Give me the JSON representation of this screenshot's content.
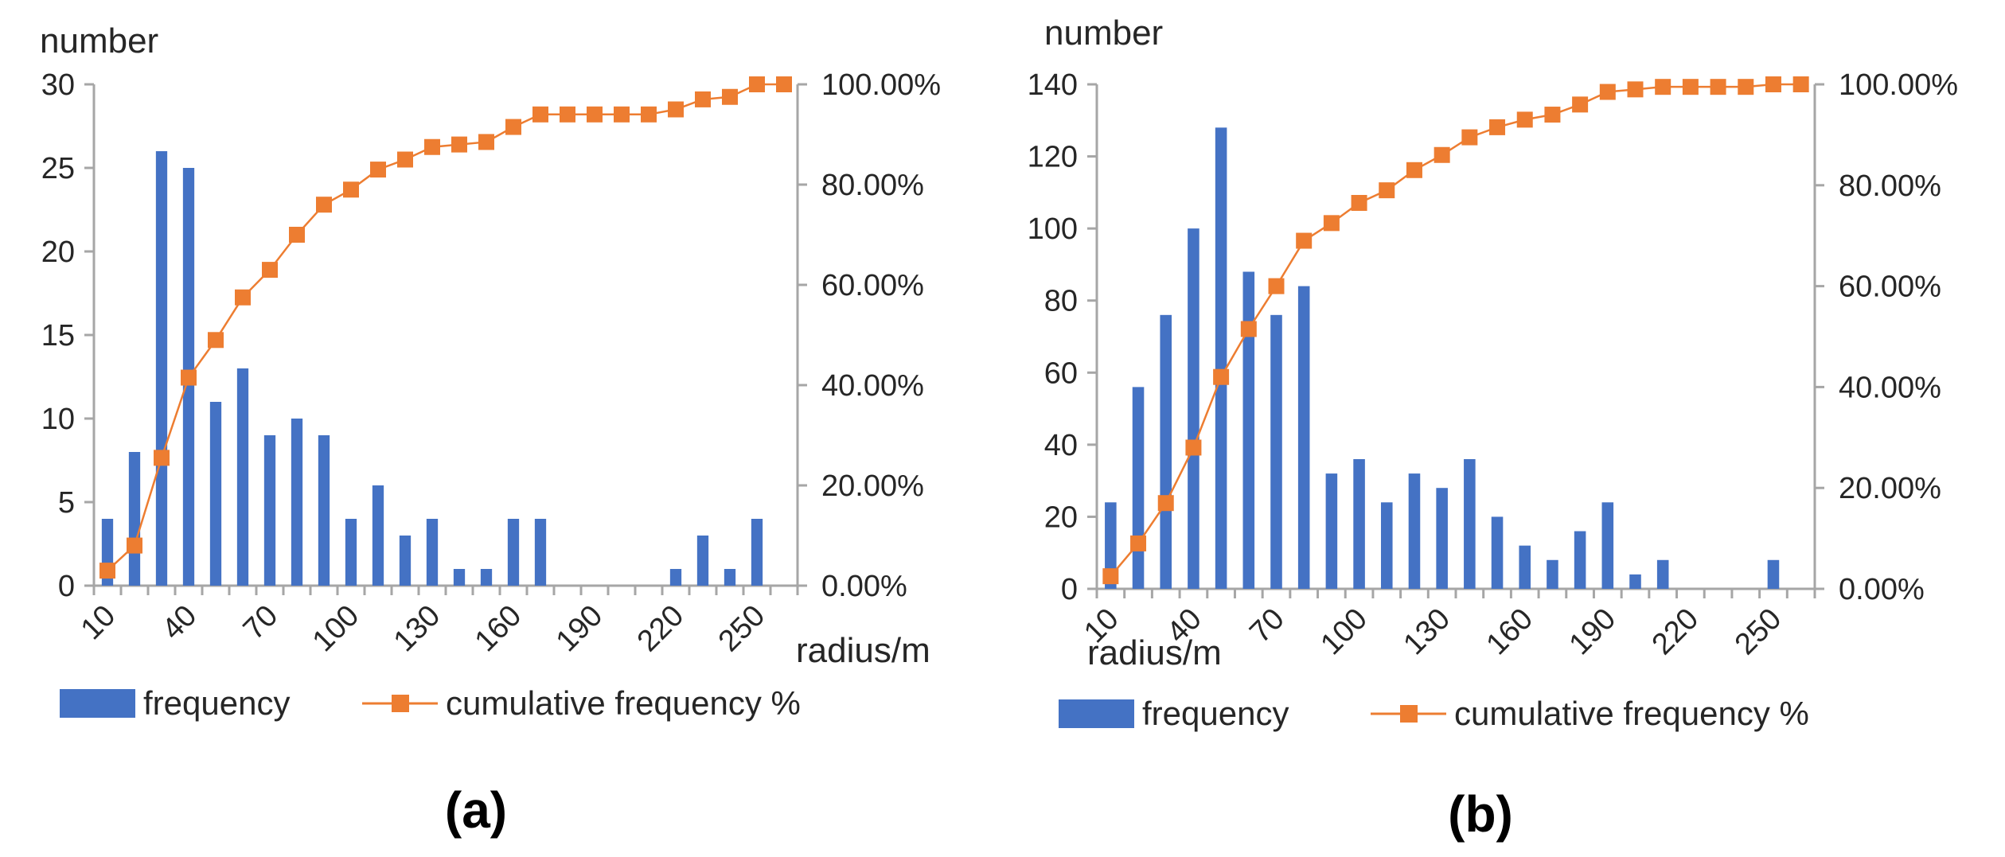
{
  "colors": {
    "bar": "#4472c4",
    "line": "#ed7d31",
    "axis": "#a6a6a6",
    "text": "#262626"
  },
  "legend": {
    "bar_label": "frequency",
    "line_label": "cumulative frequency %"
  },
  "chart_data": [
    {
      "panel_label": "(a)",
      "type": "bar+line",
      "ylabel": "number",
      "xlabel": "radius/m",
      "ylim": [
        0,
        30
      ],
      "y_ticks": [
        "0",
        "5",
        "10",
        "15",
        "20",
        "25",
        "30"
      ],
      "y2lim": [
        0,
        100
      ],
      "y2_ticks": [
        "0.00%",
        "20.00%",
        "40.00%",
        "60.00%",
        "80.00%",
        "100.00%"
      ],
      "x_tick_labels": [
        "10",
        "40",
        "70",
        "100",
        "130",
        "160",
        "190",
        "220",
        "250"
      ],
      "categories": [
        10,
        20,
        30,
        40,
        50,
        60,
        70,
        80,
        90,
        100,
        110,
        120,
        130,
        140,
        150,
        160,
        170,
        180,
        190,
        200,
        210,
        220,
        230,
        240,
        250,
        260
      ],
      "series": [
        {
          "name": "frequency",
          "type": "bar",
          "axis": "left",
          "values": [
            4,
            8,
            26,
            25,
            11,
            13,
            9,
            10,
            9,
            4,
            6,
            3,
            4,
            1,
            1,
            4,
            4,
            0,
            0,
            0,
            0,
            1,
            3,
            1,
            4,
            0
          ]
        },
        {
          "name": "cumulative frequency %",
          "type": "line",
          "axis": "right",
          "values": [
            3,
            8,
            25.5,
            41.5,
            49,
            57.5,
            63,
            70,
            76,
            79,
            83,
            85,
            87.5,
            88,
            88.5,
            91.5,
            94,
            94,
            94,
            94,
            94,
            95,
            97,
            97.5,
            100,
            100
          ]
        }
      ]
    },
    {
      "panel_label": "(b)",
      "type": "bar+line",
      "ylabel": "number",
      "xlabel": "radius/m",
      "ylim": [
        0,
        140
      ],
      "y_ticks": [
        "0",
        "20",
        "40",
        "60",
        "80",
        "100",
        "120",
        "140"
      ],
      "y2lim": [
        0,
        100
      ],
      "y2_ticks": [
        "0.00%",
        "20.00%",
        "40.00%",
        "60.00%",
        "80.00%",
        "100.00%"
      ],
      "x_tick_labels": [
        "10",
        "40",
        "70",
        "100",
        "130",
        "160",
        "190",
        "220",
        "250"
      ],
      "categories": [
        10,
        20,
        30,
        40,
        50,
        60,
        70,
        80,
        90,
        100,
        110,
        120,
        130,
        140,
        150,
        160,
        170,
        180,
        190,
        200,
        210,
        220,
        230,
        240,
        250,
        260
      ],
      "series": [
        {
          "name": "frequency",
          "type": "bar",
          "axis": "left",
          "values": [
            24,
            56,
            76,
            100,
            128,
            88,
            76,
            84,
            32,
            36,
            24,
            32,
            28,
            36,
            20,
            12,
            8,
            16,
            24,
            4,
            8,
            0,
            0,
            0,
            8,
            0
          ]
        },
        {
          "name": "cumulative frequency %",
          "type": "line",
          "axis": "right",
          "values": [
            2.5,
            9,
            17,
            28,
            42,
            51.5,
            60,
            69,
            72.5,
            76.5,
            79,
            83,
            86,
            89.5,
            91.5,
            93,
            94,
            96,
            98.5,
            99,
            99.5,
            99.5,
            99.5,
            99.5,
            100,
            100
          ]
        }
      ]
    }
  ]
}
